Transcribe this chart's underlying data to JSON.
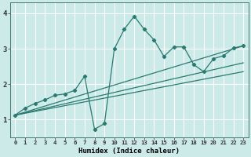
{
  "bg_color": "#cceae8",
  "grid_color": "#ffffff",
  "line_color": "#2a7a72",
  "marker_color": "#2a7a72",
  "xlabel": "Humidex (Indice chaleur)",
  "xlim": [
    -0.5,
    23.5
  ],
  "ylim": [
    0.5,
    4.3
  ],
  "xticks": [
    0,
    1,
    2,
    3,
    4,
    5,
    6,
    7,
    8,
    9,
    10,
    11,
    12,
    13,
    14,
    15,
    16,
    17,
    18,
    19,
    20,
    21,
    22,
    23
  ],
  "yticks": [
    1,
    2,
    3,
    4
  ],
  "main_series": {
    "x": [
      0,
      1,
      2,
      3,
      4,
      5,
      6,
      7,
      8,
      9,
      10,
      11,
      12,
      13,
      14,
      15,
      16,
      17,
      18,
      19,
      20,
      21,
      22,
      23
    ],
    "y": [
      1.12,
      1.32,
      1.45,
      1.55,
      1.68,
      1.72,
      1.82,
      2.22,
      0.72,
      0.88,
      3.0,
      3.55,
      3.92,
      3.55,
      3.25,
      2.78,
      3.05,
      3.05,
      2.55,
      2.35,
      2.72,
      2.8,
      3.02,
      3.08
    ]
  },
  "trend_lines": [
    {
      "x": [
        0,
        23
      ],
      "y": [
        1.12,
        3.08
      ]
    },
    {
      "x": [
        0,
        23
      ],
      "y": [
        1.12,
        2.6
      ]
    },
    {
      "x": [
        0,
        23
      ],
      "y": [
        1.12,
        2.35
      ]
    }
  ]
}
